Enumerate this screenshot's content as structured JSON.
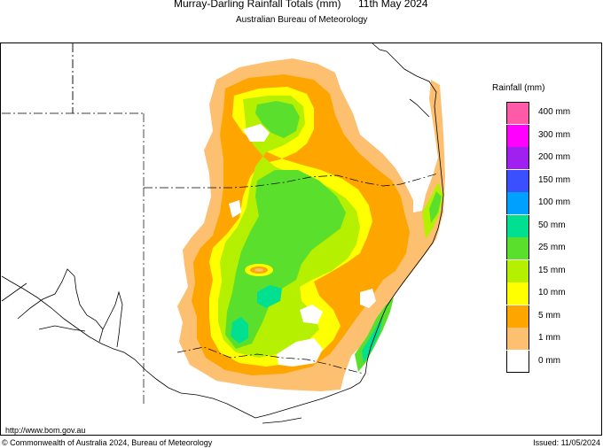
{
  "header": {
    "title": "Murray-Darling Rainfall Totals (mm)",
    "date": "11th May 2024",
    "subtitle": "Australian Bureau of Meteorology"
  },
  "legend": {
    "title": "Rainfall (mm)",
    "items": [
      {
        "label": "400 mm",
        "color": "#ff5aa8"
      },
      {
        "label": "300 mm",
        "color": "#ff00ff"
      },
      {
        "label": "200 mm",
        "color": "#a020ef"
      },
      {
        "label": "150 mm",
        "color": "#3a50ff"
      },
      {
        "label": "100 mm",
        "color": "#00a0ff"
      },
      {
        "label": "50 mm",
        "color": "#00e090"
      },
      {
        "label": "25 mm",
        "color": "#5ae02c"
      },
      {
        "label": "15 mm",
        "color": "#b4f000"
      },
      {
        "label": "10 mm",
        "color": "#ffff00"
      },
      {
        "label": "5 mm",
        "color": "#ffa500"
      },
      {
        "label": "1 mm",
        "color": "#fcc070"
      },
      {
        "label": "0 mm",
        "color": "#ffffff"
      }
    ]
  },
  "footer": {
    "url": "http://www.bom.gov.au",
    "copyright": "© Commonwealth of Australia 2024, Bureau of Meteorology",
    "issued": "Issued: 11/05/2024"
  }
}
